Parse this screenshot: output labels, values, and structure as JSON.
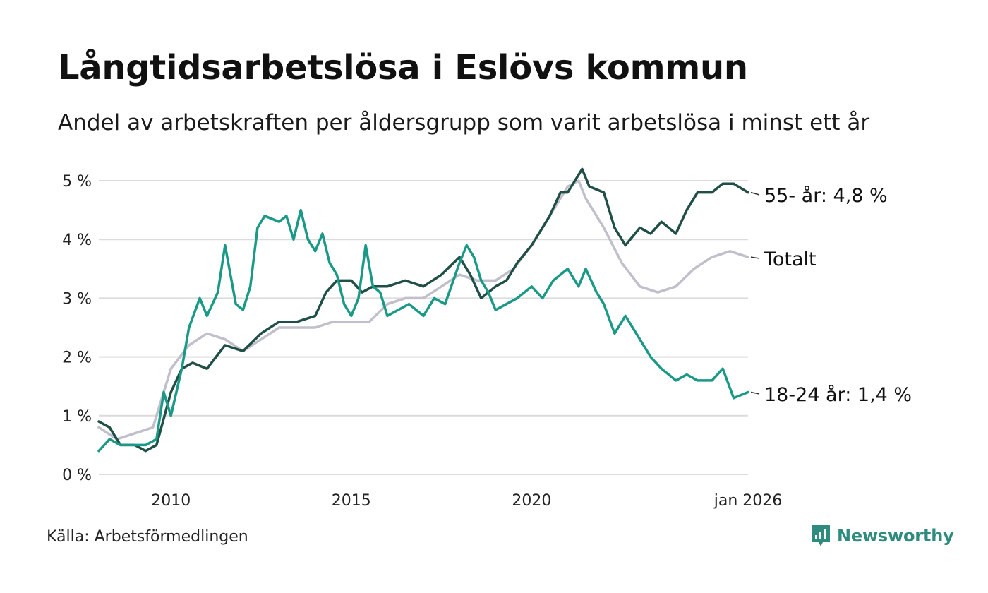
{
  "title": "Långtidsarbetslösa i Eslövs kommun",
  "subtitle": "Andel av arbetskraften per åldersgrupp som varit arbetslösa i minst ett år",
  "source": "Källa: Arbetsförmedlingen",
  "brand": {
    "name": "Newsworthy",
    "color": "#2e8b7e",
    "icon": "bar-chart-icon"
  },
  "chart_data": {
    "type": "line",
    "title": "Långtidsarbetslösa i Eslövs kommun",
    "ylim": [
      0,
      5
    ],
    "xlim": [
      2008.0,
      2026.0
    ],
    "y_ticks": [
      0,
      1,
      2,
      3,
      4,
      5
    ],
    "y_tick_labels": [
      "0 %",
      "1 %",
      "2 %",
      "3 %",
      "4 %",
      "5 %"
    ],
    "x_ticks": [
      2010,
      2015,
      2020,
      2026
    ],
    "x_tick_labels": [
      "2010",
      "2015",
      "2020",
      "jan 2026"
    ],
    "grid": true,
    "series": [
      {
        "name": "Totalt",
        "label": "Totalt",
        "color": "#c2bfcc",
        "x": [
          2008.0,
          2008.5,
          2009.0,
          2009.5,
          2010.0,
          2010.5,
          2011.0,
          2011.5,
          2012.0,
          2012.5,
          2013.0,
          2013.5,
          2014.0,
          2014.5,
          2015.0,
          2015.5,
          2016.0,
          2016.5,
          2017.0,
          2017.5,
          2018.0,
          2018.5,
          2019.0,
          2019.5,
          2020.0,
          2020.5,
          2021.0,
          2021.3,
          2021.5,
          2022.0,
          2022.5,
          2023.0,
          2023.5,
          2024.0,
          2024.5,
          2025.0,
          2025.5,
          2026.0
        ],
        "values": [
          0.8,
          0.6,
          0.7,
          0.8,
          1.8,
          2.2,
          2.4,
          2.3,
          2.1,
          2.3,
          2.5,
          2.5,
          2.5,
          2.6,
          2.6,
          2.6,
          2.9,
          3.0,
          3.0,
          3.2,
          3.4,
          3.3,
          3.3,
          3.5,
          3.9,
          4.4,
          4.9,
          5.0,
          4.7,
          4.2,
          3.6,
          3.2,
          3.1,
          3.2,
          3.5,
          3.7,
          3.8,
          3.7
        ]
      },
      {
        "name": "55- år",
        "label": "55- år: 4,8 %",
        "color": "#1f4f46",
        "x": [
          2008.0,
          2008.3,
          2008.6,
          2009.0,
          2009.3,
          2009.6,
          2010.0,
          2010.3,
          2010.6,
          2011.0,
          2011.5,
          2012.0,
          2012.5,
          2013.0,
          2013.5,
          2014.0,
          2014.3,
          2014.6,
          2015.0,
          2015.3,
          2015.6,
          2016.0,
          2016.5,
          2017.0,
          2017.5,
          2018.0,
          2018.3,
          2018.6,
          2019.0,
          2019.3,
          2019.6,
          2020.0,
          2020.5,
          2020.8,
          2021.0,
          2021.2,
          2021.4,
          2021.6,
          2022.0,
          2022.3,
          2022.6,
          2023.0,
          2023.3,
          2023.6,
          2024.0,
          2024.3,
          2024.6,
          2025.0,
          2025.3,
          2025.6,
          2026.0
        ],
        "values": [
          0.9,
          0.8,
          0.5,
          0.5,
          0.4,
          0.5,
          1.4,
          1.8,
          1.9,
          1.8,
          2.2,
          2.1,
          2.4,
          2.6,
          2.6,
          2.7,
          3.1,
          3.3,
          3.3,
          3.1,
          3.2,
          3.2,
          3.3,
          3.2,
          3.4,
          3.7,
          3.4,
          3.0,
          3.2,
          3.3,
          3.6,
          3.9,
          4.4,
          4.8,
          4.8,
          5.0,
          5.2,
          4.9,
          4.8,
          4.2,
          3.9,
          4.2,
          4.1,
          4.3,
          4.1,
          4.5,
          4.8,
          4.8,
          4.95,
          4.95,
          4.8
        ]
      },
      {
        "name": "18-24 år",
        "label": "18-24 år: 1,4 %",
        "color": "#1a9986",
        "x": [
          2008.0,
          2008.3,
          2008.6,
          2009.0,
          2009.3,
          2009.6,
          2009.8,
          2010.0,
          2010.3,
          2010.5,
          2010.8,
          2011.0,
          2011.3,
          2011.5,
          2011.8,
          2012.0,
          2012.2,
          2012.4,
          2012.6,
          2013.0,
          2013.2,
          2013.4,
          2013.6,
          2013.8,
          2014.0,
          2014.2,
          2014.4,
          2014.6,
          2014.8,
          2015.0,
          2015.2,
          2015.4,
          2015.6,
          2015.8,
          2016.0,
          2016.3,
          2016.6,
          2017.0,
          2017.3,
          2017.6,
          2018.0,
          2018.2,
          2018.4,
          2018.6,
          2018.8,
          2019.0,
          2019.3,
          2019.6,
          2020.0,
          2020.3,
          2020.6,
          2021.0,
          2021.3,
          2021.5,
          2021.8,
          2022.0,
          2022.3,
          2022.6,
          2023.0,
          2023.3,
          2023.6,
          2024.0,
          2024.3,
          2024.6,
          2025.0,
          2025.3,
          2025.6,
          2026.0
        ],
        "values": [
          0.4,
          0.6,
          0.5,
          0.5,
          0.5,
          0.6,
          1.4,
          1.0,
          1.8,
          2.5,
          3.0,
          2.7,
          3.1,
          3.9,
          2.9,
          2.8,
          3.2,
          4.2,
          4.4,
          4.3,
          4.4,
          4.0,
          4.5,
          4.0,
          3.8,
          4.1,
          3.6,
          3.4,
          2.9,
          2.7,
          3.0,
          3.9,
          3.2,
          3.1,
          2.7,
          2.8,
          2.9,
          2.7,
          3.0,
          2.9,
          3.6,
          3.9,
          3.7,
          3.3,
          3.1,
          2.8,
          2.9,
          3.0,
          3.2,
          3.0,
          3.3,
          3.5,
          3.2,
          3.5,
          3.1,
          2.9,
          2.4,
          2.7,
          2.3,
          2.0,
          1.8,
          1.6,
          1.7,
          1.6,
          1.6,
          1.8,
          1.3,
          1.4
        ]
      }
    ]
  }
}
